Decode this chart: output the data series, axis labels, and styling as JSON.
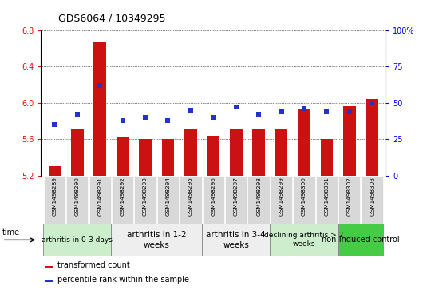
{
  "title": "GDS6064 / 10349295",
  "samples": [
    "GSM1498289",
    "GSM1498290",
    "GSM1498291",
    "GSM1498292",
    "GSM1498293",
    "GSM1498294",
    "GSM1498295",
    "GSM1498296",
    "GSM1498297",
    "GSM1498298",
    "GSM1498299",
    "GSM1498300",
    "GSM1498301",
    "GSM1498302",
    "GSM1498303"
  ],
  "transformed_count": [
    5.3,
    5.72,
    6.68,
    5.62,
    5.6,
    5.6,
    5.72,
    5.64,
    5.72,
    5.72,
    5.72,
    5.94,
    5.6,
    5.96,
    6.04
  ],
  "percentile_rank": [
    35,
    42,
    62,
    38,
    40,
    38,
    45,
    40,
    47,
    42,
    44,
    46,
    44,
    44,
    50
  ],
  "ylim_left": [
    5.2,
    6.8
  ],
  "ylim_right": [
    0,
    100
  ],
  "yticks_left": [
    5.2,
    5.6,
    6.0,
    6.4,
    6.8
  ],
  "yticks_right": [
    0,
    25,
    50,
    75,
    100
  ],
  "bar_color": "#cc1111",
  "dot_color": "#2233cc",
  "groups": [
    {
      "label": "arthritis in 0-3 days",
      "indices": [
        0,
        1,
        2
      ],
      "color": "#cceecc",
      "fontsize": 6.5
    },
    {
      "label": "arthritis in 1-2\nweeks",
      "indices": [
        3,
        4,
        5,
        6
      ],
      "color": "#eeeeee",
      "fontsize": 7.5
    },
    {
      "label": "arthritis in 3-4\nweeks",
      "indices": [
        7,
        8,
        9
      ],
      "color": "#eeeeee",
      "fontsize": 7.5
    },
    {
      "label": "declining arthritis > 2\nweeks",
      "indices": [
        10,
        11,
        12
      ],
      "color": "#cceecc",
      "fontsize": 6.5
    },
    {
      "label": "non-induced control",
      "indices": [
        13,
        14
      ],
      "color": "#44cc44",
      "fontsize": 7.0
    }
  ],
  "legend_bar_label": "transformed count",
  "legend_dot_label": "percentile rank within the sample",
  "sample_box_color": "#cccccc",
  "sample_text_color": "#000000"
}
